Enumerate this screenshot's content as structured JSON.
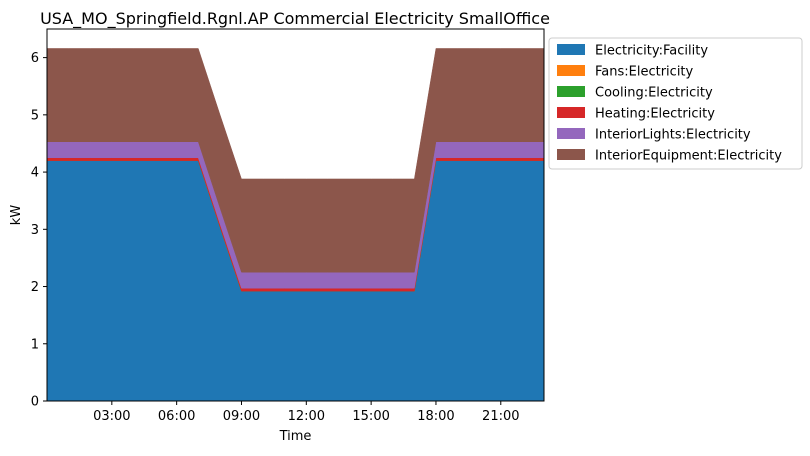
{
  "chart_data": {
    "type": "area",
    "stacked": true,
    "title": "USA_MO_Springfield.Rgnl.AP Commercial Electricity SmallOffice",
    "xlabel": "Time",
    "ylabel": "kW",
    "x_hours": [
      0,
      1,
      2,
      3,
      4,
      5,
      6,
      7,
      8,
      9,
      10,
      11,
      12,
      13,
      14,
      15,
      16,
      17,
      18,
      19,
      20,
      21,
      22,
      23
    ],
    "xlim_hours": [
      0,
      23
    ],
    "x_ticks": [
      {
        "hour": 3,
        "label": "03:00"
      },
      {
        "hour": 6,
        "label": "06:00"
      },
      {
        "hour": 9,
        "label": "09:00"
      },
      {
        "hour": 12,
        "label": "12:00"
      },
      {
        "hour": 15,
        "label": "15:00"
      },
      {
        "hour": 18,
        "label": "18:00"
      },
      {
        "hour": 21,
        "label": "21:00"
      }
    ],
    "ylim": [
      0,
      6.5
    ],
    "y_ticks": [
      "0",
      "1",
      "2",
      "3",
      "4",
      "5",
      "6"
    ],
    "grid": false,
    "legend_position": "outside-top-right",
    "series": [
      {
        "name": "Electricity:Facility",
        "color": "#1f77b4",
        "values": [
          4.2,
          4.2,
          4.2,
          4.2,
          4.2,
          4.2,
          4.2,
          4.2,
          3.05,
          1.92,
          1.92,
          1.92,
          1.92,
          1.92,
          1.92,
          1.92,
          1.92,
          1.92,
          4.2,
          4.2,
          4.2,
          4.2,
          4.2,
          4.2
        ]
      },
      {
        "name": "Fans:Electricity",
        "color": "#ff7f0e",
        "values": [
          0,
          0,
          0,
          0,
          0,
          0,
          0,
          0,
          0,
          0,
          0,
          0,
          0,
          0,
          0,
          0,
          0,
          0,
          0,
          0,
          0,
          0,
          0,
          0
        ]
      },
      {
        "name": "Cooling:Electricity",
        "color": "#2ca02c",
        "values": [
          0,
          0,
          0,
          0,
          0,
          0,
          0,
          0,
          0,
          0,
          0,
          0,
          0,
          0,
          0,
          0,
          0,
          0,
          0,
          0,
          0,
          0,
          0,
          0
        ]
      },
      {
        "name": "Heating:Electricity",
        "color": "#d62728",
        "values": [
          0.05,
          0.05,
          0.05,
          0.05,
          0.05,
          0.05,
          0.05,
          0.05,
          0.05,
          0.05,
          0.05,
          0.05,
          0.05,
          0.05,
          0.05,
          0.05,
          0.05,
          0.05,
          0.05,
          0.05,
          0.05,
          0.05,
          0.05,
          0.05
        ]
      },
      {
        "name": "InteriorLights:Electricity",
        "color": "#9467bd",
        "values": [
          0.28,
          0.28,
          0.28,
          0.28,
          0.28,
          0.28,
          0.28,
          0.28,
          0.28,
          0.28,
          0.28,
          0.28,
          0.28,
          0.28,
          0.28,
          0.28,
          0.28,
          0.28,
          0.28,
          0.28,
          0.28,
          0.28,
          0.28,
          0.28
        ]
      },
      {
        "name": "InteriorEquipment:Electricity",
        "color": "#8c564b",
        "values": [
          1.63,
          1.63,
          1.63,
          1.63,
          1.63,
          1.63,
          1.63,
          1.63,
          1.63,
          1.63,
          1.63,
          1.63,
          1.63,
          1.63,
          1.63,
          1.63,
          1.63,
          1.63,
          1.63,
          1.63,
          1.63,
          1.63,
          1.63,
          1.63
        ]
      }
    ]
  }
}
